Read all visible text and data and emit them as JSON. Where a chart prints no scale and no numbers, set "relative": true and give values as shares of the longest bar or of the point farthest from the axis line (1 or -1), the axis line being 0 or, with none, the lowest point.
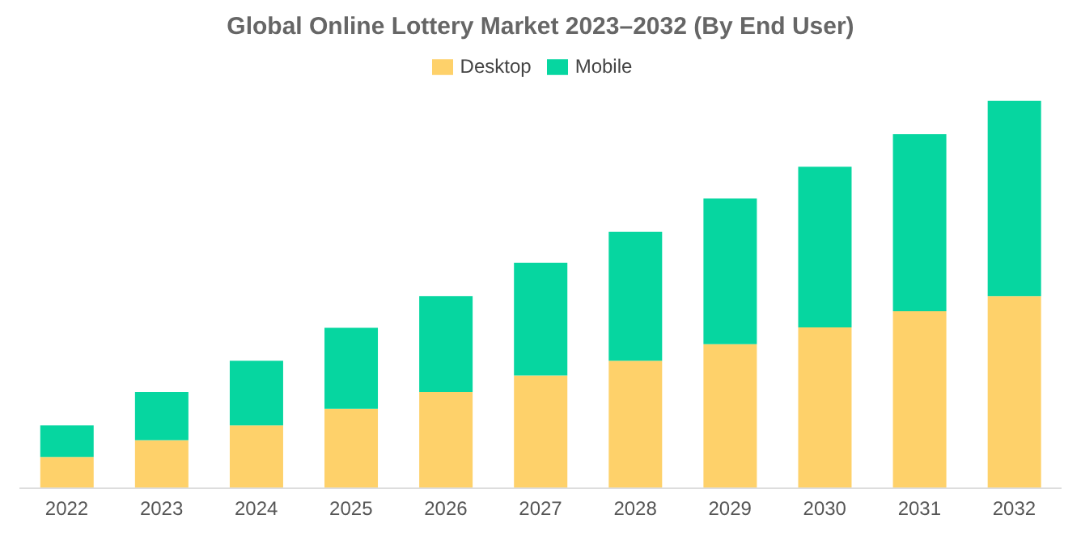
{
  "chart_data": {
    "type": "bar",
    "title": "Global Online Lottery Market 2023–2032 (By End User)",
    "categories": [
      "2022",
      "2023",
      "2024",
      "2025",
      "2026",
      "2027",
      "2028",
      "2029",
      "2030",
      "2031",
      "2032"
    ],
    "stacked": true,
    "relative": true,
    "legend": "top",
    "grid": false,
    "series": [
      {
        "name": "Desktop",
        "color": "#fed16a",
        "values": [
          0.081,
          0.124,
          0.162,
          0.205,
          0.248,
          0.291,
          0.329,
          0.372,
          0.415,
          0.457,
          0.496
        ]
      },
      {
        "name": "Mobile",
        "color": "#06d6a0",
        "values": [
          0.081,
          0.124,
          0.167,
          0.209,
          0.248,
          0.291,
          0.333,
          0.376,
          0.415,
          0.457,
          0.504
        ]
      }
    ]
  }
}
